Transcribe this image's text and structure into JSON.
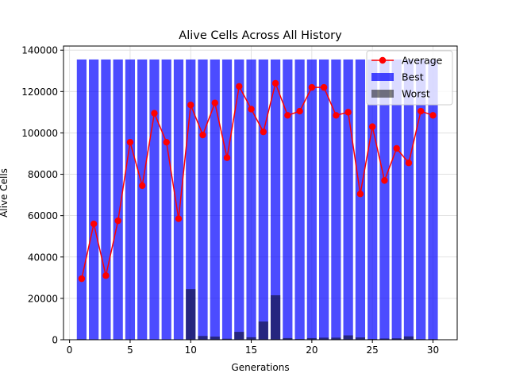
{
  "chart_data": {
    "type": "bar",
    "title": "Alive Cells Across All History",
    "xlabel": "Generations",
    "ylabel": "Alive Cells",
    "xlim": [
      -0.5,
      32.0
    ],
    "ylim": [
      0,
      142000
    ],
    "xticks": [
      0,
      5,
      10,
      15,
      20,
      25,
      30
    ],
    "xtick_labels": [
      "0",
      "5",
      "10",
      "15",
      "20",
      "25",
      "30"
    ],
    "yticks": [
      0,
      20000,
      40000,
      60000,
      80000,
      100000,
      120000,
      140000
    ],
    "ytick_labels": [
      "0",
      "20000",
      "40000",
      "60000",
      "80000",
      "100000",
      "120000",
      "140000"
    ],
    "grid": true,
    "legend_position": "top-right",
    "x": [
      1,
      2,
      3,
      4,
      5,
      6,
      7,
      8,
      9,
      10,
      11,
      12,
      13,
      14,
      15,
      16,
      17,
      18,
      19,
      20,
      21,
      22,
      23,
      24,
      25,
      26,
      27,
      28,
      29,
      30
    ],
    "series": [
      {
        "name": "Best",
        "kind": "bar",
        "color": "#0000ff",
        "opacity": 0.7,
        "values": [
          135500,
          135500,
          135500,
          135500,
          135500,
          135500,
          135500,
          135500,
          135500,
          135500,
          135500,
          135500,
          135500,
          135500,
          135500,
          135500,
          135500,
          135500,
          135500,
          135500,
          135500,
          135500,
          135500,
          135500,
          135500,
          135500,
          135500,
          135500,
          135500,
          135500
        ]
      },
      {
        "name": "Worst",
        "kind": "bar",
        "color": "#000000",
        "opacity": 0.5,
        "values": [
          300,
          200,
          200,
          200,
          200,
          200,
          200,
          200,
          200,
          24500,
          1800,
          1500,
          500,
          3800,
          1200,
          8800,
          21500,
          800,
          400,
          800,
          1000,
          1000,
          2100,
          1100,
          400,
          600,
          700,
          1600,
          300,
          300
        ]
      },
      {
        "name": "Average",
        "kind": "line",
        "color": "#ff0000",
        "values": [
          29500,
          56000,
          31000,
          57500,
          95500,
          74500,
          109500,
          95500,
          58500,
          113500,
          99000,
          114500,
          88000,
          122500,
          111500,
          100500,
          124000,
          108500,
          110500,
          122000,
          122000,
          108500,
          110000,
          70500,
          103000,
          77000,
          92500,
          85500,
          110500,
          108500
        ]
      }
    ],
    "legend": {
      "entries": [
        {
          "label": "Average",
          "symbol": "line-marker",
          "color": "#ff0000"
        },
        {
          "label": "Best",
          "symbol": "patch",
          "color": "#0000ff",
          "opacity": 0.7
        },
        {
          "label": "Worst",
          "symbol": "patch",
          "color": "#000000",
          "opacity": 0.5
        }
      ]
    }
  }
}
